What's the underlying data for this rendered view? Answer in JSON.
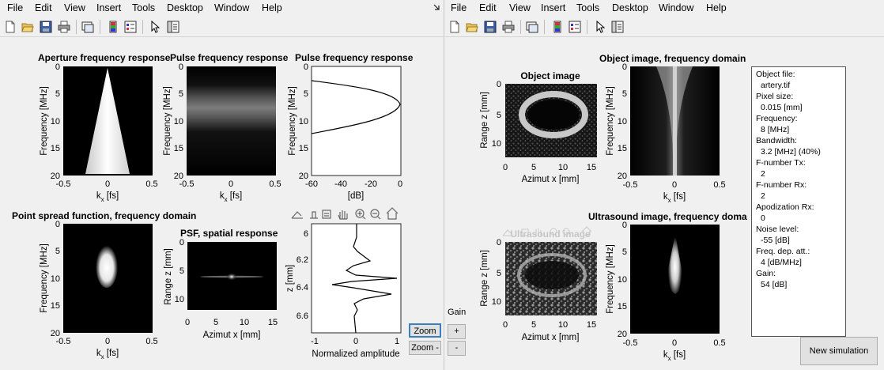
{
  "menu": [
    "File",
    "Edit",
    "View",
    "Insert",
    "Tools",
    "Desktop",
    "Window",
    "Help"
  ],
  "left": {
    "plots": {
      "aperture": {
        "title": "Aperture frequency response",
        "ylabel": "Frequency [MHz]",
        "xlabel": "k",
        "xsub": "x",
        "xunit": " [fs]",
        "yticks": [
          "0",
          "5",
          "10",
          "15",
          "20"
        ],
        "xticks": [
          "-0.5",
          "0",
          "0.5"
        ]
      },
      "pulse_img": {
        "title": "Pulse frequency response",
        "ylabel": "Frequency [MHz]",
        "xlabel": "k",
        "xsub": "x",
        "xunit": " [fs]",
        "yticks": [
          "0",
          "5",
          "10",
          "15",
          "20"
        ],
        "xticks": [
          "-0.5",
          "0",
          "0.5"
        ]
      },
      "pulse_line": {
        "title": "Pulse frequency response",
        "ylabel": "Frequency [MHz]",
        "xlabel": "[dB]",
        "yticks": [
          "0",
          "5",
          "10",
          "15",
          "20"
        ],
        "xticks": [
          "-60",
          "-40",
          "-20",
          "0"
        ]
      },
      "psf_freq": {
        "title": "Point spread function, frequency domain",
        "ylabel": "Frequency [MHz]",
        "xlabel": "k",
        "xsub": "x",
        "xunit": " [fs]",
        "yticks": [
          "0",
          "5",
          "10",
          "15",
          "20"
        ],
        "xticks": [
          "-0.5",
          "0",
          "0.5"
        ]
      },
      "psf_spatial": {
        "title": "PSF, spatial response",
        "ylabel": "Range z [mm]",
        "xlabel": "Azimut x [mm]",
        "yticks": [
          "0",
          "5",
          "10"
        ],
        "xticks": [
          "0",
          "5",
          "10",
          "15"
        ]
      },
      "amplitude": {
        "ylabel": "z [mm]",
        "xlabel": "Normalized amplitude",
        "yticks": [
          "6",
          "6.2",
          "6.4",
          "6.6"
        ],
        "xticks": [
          "-1",
          "0",
          "1"
        ]
      }
    },
    "zoom_plus": "Zoom +",
    "zoom_minus": "Zoom -"
  },
  "right": {
    "plots": {
      "object_img": {
        "title": "Object image",
        "ylabel": "Range z [mm]",
        "xlabel": "Azimut x [mm]",
        "yticks": [
          "0",
          "5",
          "10"
        ],
        "xticks": [
          "0",
          "5",
          "10",
          "15"
        ]
      },
      "object_freq": {
        "title": "Object image, frequency domain",
        "ylabel": "Frequency [MHz]",
        "xlabel": "k",
        "xsub": "x",
        "xunit": " [fs]",
        "yticks": [
          "0",
          "5",
          "10",
          "15",
          "20"
        ],
        "xticks": [
          "-0.5",
          "0",
          "0.5"
        ]
      },
      "us_img": {
        "title": "Ultrasound image",
        "ylabel": "Range z [mm]",
        "xlabel": "Azimut x [mm]",
        "yticks": [
          "0",
          "5",
          "10"
        ],
        "xticks": [
          "0",
          "5",
          "10",
          "15"
        ]
      },
      "us_freq": {
        "title": "Ultrasound image, frequency doma",
        "ylabel": "Frequency [MHz]",
        "xlabel": "k",
        "xsub": "x",
        "xunit": " [fs]",
        "yticks": [
          "0",
          "5",
          "10",
          "15",
          "20"
        ],
        "xticks": [
          "-0.5",
          "0",
          "0.5"
        ]
      }
    },
    "gain_label": "Gain",
    "gain_plus": "+",
    "gain_minus": "-",
    "info": [
      "Object file:",
      "artery.tif",
      "Pixel size:",
      "0.015 [mm]",
      "Frequency:",
      "8 [MHz]",
      "Bandwidth:",
      "3.2 [MHz] (40%)",
      "F-number Tx:",
      "2",
      "F-number Rx:",
      "2",
      "Apodization Rx:",
      "0",
      "Noise level:",
      "-55 [dB]",
      "Freq. dep. att.:",
      "4 [dB/MHz]",
      "Gain:",
      "54 [dB]"
    ],
    "new_simulation": "New simulation"
  }
}
